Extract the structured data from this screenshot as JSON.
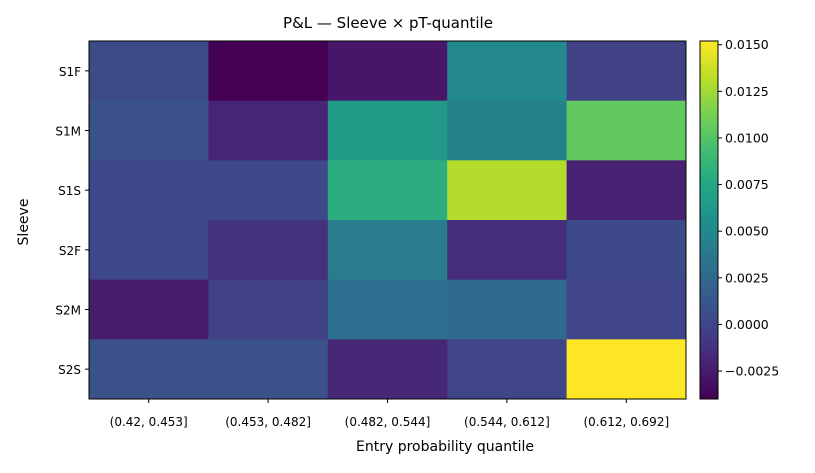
{
  "chart_data": {
    "type": "heatmap",
    "title": "P&L — Sleeve × pT-quantile",
    "xlabel": "Entry probability quantile",
    "ylabel": "Sleeve",
    "x_categories": [
      "(0.42, 0.453]",
      "(0.453, 0.482]",
      "(0.482, 0.544]",
      "(0.544, 0.612]",
      "(0.612, 0.692]"
    ],
    "y_categories": [
      "S1F",
      "S1M",
      "S1S",
      "S2F",
      "S2M",
      "S2S"
    ],
    "values": [
      [
        0.0005,
        -0.004,
        -0.0028,
        0.005,
        -0.0003
      ],
      [
        0.0008,
        -0.002,
        0.0065,
        0.0045,
        0.0105
      ],
      [
        0.0002,
        0.0003,
        0.008,
        0.013,
        -0.0022
      ],
      [
        0.0002,
        -0.0012,
        0.004,
        -0.0015,
        0.0003
      ],
      [
        -0.0025,
        -0.0003,
        0.003,
        0.0027,
        0.0
      ],
      [
        0.0008,
        0.0008,
        -0.0018,
        0.0,
        0.0152
      ]
    ],
    "colormap": "viridis",
    "colorbar": {
      "range": [
        -0.004,
        0.0152
      ],
      "ticks": [
        -0.0025,
        0.0,
        0.0025,
        0.005,
        0.0075,
        0.01,
        0.0125,
        0.015
      ],
      "tick_labels": [
        "−0.0025",
        "0.0000",
        "0.0025",
        "0.0050",
        "0.0075",
        "0.0100",
        "0.0125",
        "0.0150"
      ]
    },
    "grid": false
  }
}
